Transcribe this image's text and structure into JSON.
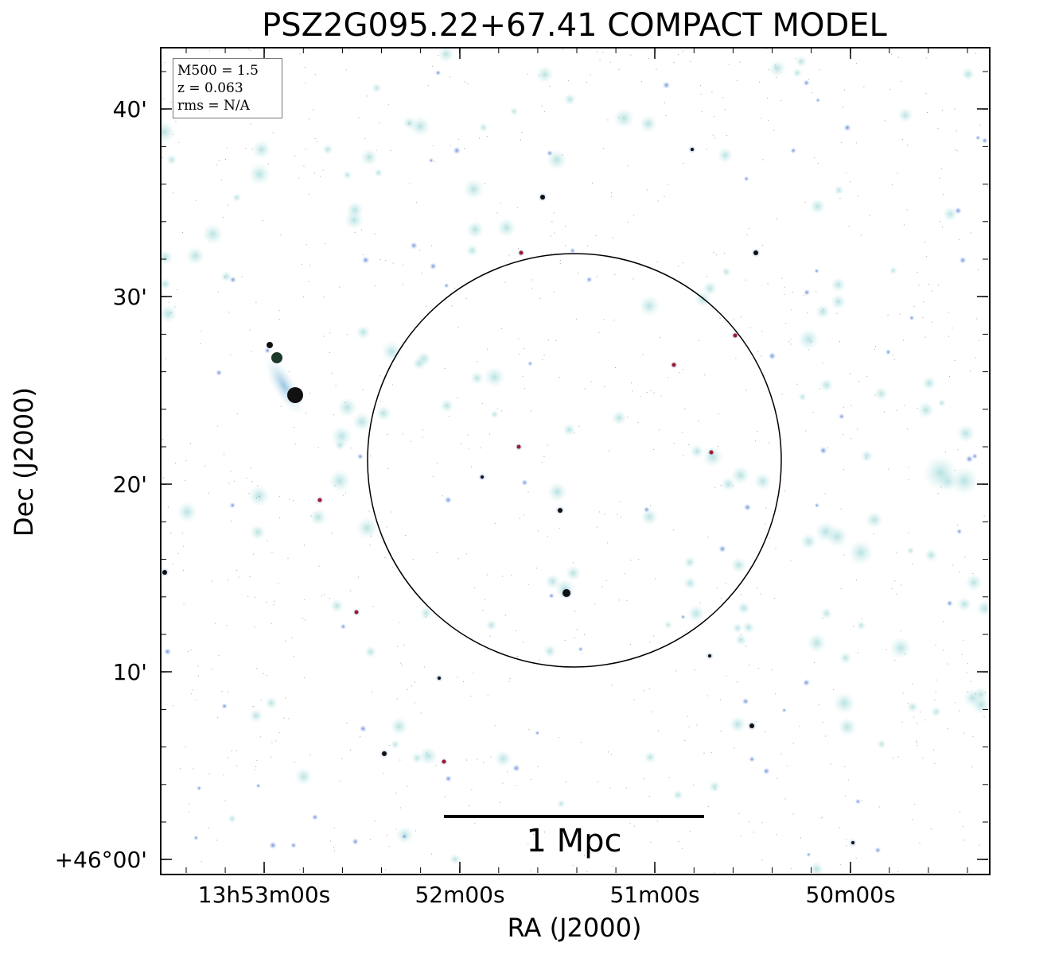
{
  "title": "PSZ2G095.22+67.41 COMPACT MODEL",
  "info": {
    "m500": "M500 = 1.5",
    "z": "z = 0.063",
    "rms": "rms = N/A"
  },
  "axes": {
    "xlabel": "RA (J2000)",
    "ylabel": "Dec (J2000)",
    "xticks": [
      "13h53m00s",
      "52m00s",
      "51m00s",
      "50m00s"
    ],
    "yticks": [
      "40'",
      "30'",
      "20'",
      "10'",
      "+46°00'"
    ]
  },
  "scalebar": {
    "label": "1 Mpc"
  },
  "colors": {
    "source_cyan": "#bfe3e3",
    "source_blue": "#6f8fd6",
    "source_dark": "#111111",
    "source_red": "#a01a2a",
    "circle": "#000000"
  }
}
